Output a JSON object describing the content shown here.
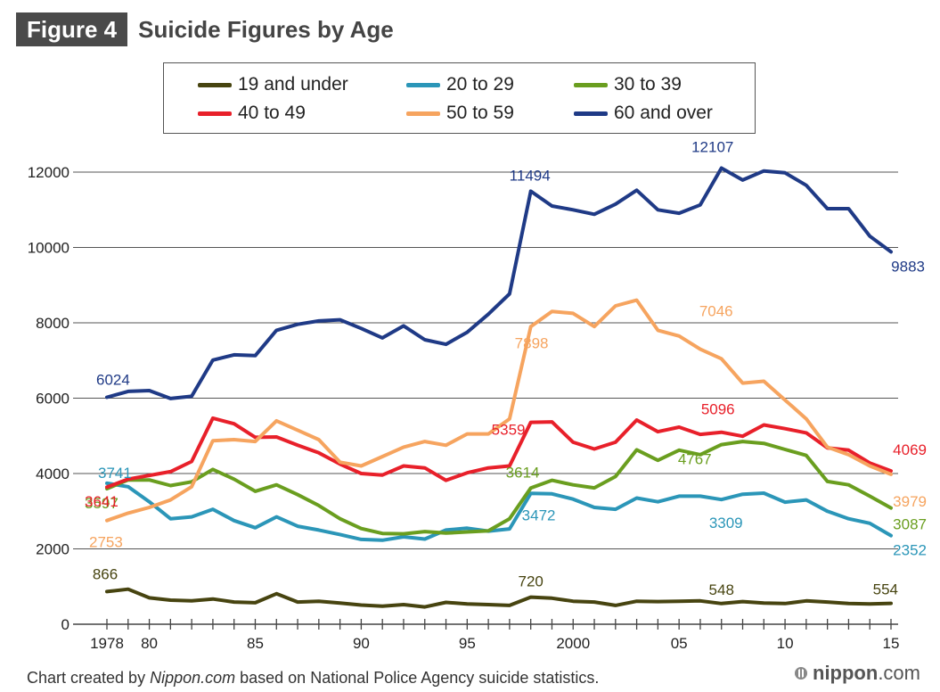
{
  "header": {
    "figure_tag": "Figure 4",
    "title": "Suicide Figures by Age"
  },
  "footer": {
    "note_prefix": "Chart created by ",
    "note_source": "Nippon.com",
    "note_suffix": " based on National Police Agency suicide statistics."
  },
  "brand": {
    "name_bold": "nippon",
    "name_rest": ".com"
  },
  "chart_data": {
    "type": "line",
    "title": "Suicide Figures by Age",
    "xlabel": "",
    "ylabel": "",
    "x": [
      1978,
      1979,
      1980,
      1981,
      1982,
      1983,
      1984,
      1985,
      1986,
      1987,
      1988,
      1989,
      1990,
      1991,
      1992,
      1993,
      1994,
      1995,
      1996,
      1997,
      1998,
      1999,
      2000,
      2001,
      2002,
      2003,
      2004,
      2005,
      2006,
      2007,
      2008,
      2009,
      2010,
      2011,
      2012,
      2013,
      2014,
      2015
    ],
    "x_tick_values": [
      1978,
      1980,
      1985,
      1990,
      1995,
      2000,
      2005,
      2010,
      2015
    ],
    "x_tick_labels": [
      "1978",
      "80",
      "85",
      "90",
      "95",
      "2000",
      "05",
      "10",
      "15"
    ],
    "ylim": [
      0,
      12000
    ],
    "y_ticks": [
      0,
      2000,
      4000,
      6000,
      8000,
      10000,
      12000
    ],
    "y_tick_labels": [
      "0",
      "2000",
      "4000",
      "6000",
      "8000",
      "10000",
      "12000"
    ],
    "grid": true,
    "legend_position": "top",
    "series": [
      {
        "name": "19 and under",
        "color": "#474410",
        "values": [
          866,
          930,
          700,
          640,
          620,
          670,
          590,
          570,
          810,
          590,
          610,
          560,
          510,
          480,
          520,
          460,
          580,
          540,
          520,
          500,
          720,
          690,
          610,
          590,
          500,
          610,
          600,
          610,
          620,
          548,
          600,
          560,
          550,
          620,
          590,
          550,
          540,
          554
        ]
      },
      {
        "name": "20 to 29",
        "color": "#2b96b8",
        "values": [
          3741,
          3650,
          3250,
          2800,
          2850,
          3050,
          2750,
          2560,
          2850,
          2600,
          2500,
          2380,
          2250,
          2230,
          2320,
          2260,
          2500,
          2550,
          2470,
          2530,
          3472,
          3460,
          3320,
          3100,
          3050,
          3350,
          3250,
          3400,
          3400,
          3309,
          3450,
          3480,
          3240,
          3300,
          3000,
          2800,
          2680,
          2352
        ]
      },
      {
        "name": "30 to 39",
        "color": "#6a9e1f",
        "values": [
          3597,
          3830,
          3830,
          3680,
          3780,
          4110,
          3850,
          3530,
          3700,
          3440,
          3150,
          2800,
          2540,
          2410,
          2400,
          2460,
          2420,
          2450,
          2480,
          2800,
          3614,
          3820,
          3700,
          3620,
          3920,
          4630,
          4350,
          4620,
          4500,
          4767,
          4850,
          4800,
          4640,
          4480,
          3790,
          3700,
          3400,
          3087
        ]
      },
      {
        "name": "40 to 49",
        "color": "#e8202a",
        "values": [
          3641,
          3850,
          3950,
          4050,
          4320,
          5470,
          5320,
          4960,
          4970,
          4750,
          4550,
          4250,
          4000,
          3960,
          4200,
          4150,
          3820,
          4020,
          4150,
          4200,
          5359,
          5370,
          4830,
          4650,
          4830,
          5420,
          5110,
          5230,
          5040,
          5096,
          4990,
          5290,
          5190,
          5080,
          4680,
          4620,
          4280,
          4069
        ]
      },
      {
        "name": "50 to 59",
        "color": "#f6a45f",
        "values": [
          2753,
          2950,
          3100,
          3300,
          3650,
          4870,
          4900,
          4850,
          5400,
          5150,
          4900,
          4300,
          4200,
          4450,
          4700,
          4850,
          4750,
          5050,
          5050,
          5450,
          7898,
          8300,
          8250,
          7900,
          8450,
          8600,
          7800,
          7650,
          7300,
          7046,
          6400,
          6450,
          5950,
          5450,
          4700,
          4500,
          4200,
          3979
        ]
      },
      {
        "name": "60 and over",
        "color": "#1f3a86",
        "values": [
          6024,
          6180,
          6200,
          5990,
          6050,
          7010,
          7150,
          7130,
          7800,
          7960,
          8050,
          8080,
          7850,
          7600,
          7920,
          7550,
          7430,
          7750,
          8230,
          8770,
          11494,
          11100,
          11000,
          10880,
          11150,
          11520,
          11000,
          10910,
          11130,
          12107,
          11790,
          12030,
          11980,
          11650,
          11030,
          11030,
          10300,
          9883
        ]
      }
    ],
    "annotations": [
      {
        "series": "19 and under",
        "x": 1978,
        "text": "866"
      },
      {
        "series": "19 and under",
        "x": 1998,
        "text": "720"
      },
      {
        "series": "19 and under",
        "x": 2007,
        "text": "548"
      },
      {
        "series": "19 and under",
        "x": 2015,
        "text": "554"
      },
      {
        "series": "20 to 29",
        "x": 1978,
        "text": "3741"
      },
      {
        "series": "20 to 29",
        "x": 1998,
        "text": "3472"
      },
      {
        "series": "20 to 29",
        "x": 2007,
        "text": "3309"
      },
      {
        "series": "20 to 29",
        "x": 2015,
        "text": "2352"
      },
      {
        "series": "30 to 39",
        "x": 1978,
        "text": "3597"
      },
      {
        "series": "30 to 39",
        "x": 1998,
        "text": "3614"
      },
      {
        "series": "30 to 39",
        "x": 2007,
        "text": "4767"
      },
      {
        "series": "30 to 39",
        "x": 2015,
        "text": "3087"
      },
      {
        "series": "40 to 49",
        "x": 1978,
        "text": "3641"
      },
      {
        "series": "40 to 49",
        "x": 1998,
        "text": "5359"
      },
      {
        "series": "40 to 49",
        "x": 2007,
        "text": "5096"
      },
      {
        "series": "40 to 49",
        "x": 2015,
        "text": "4069"
      },
      {
        "series": "50 to 59",
        "x": 1978,
        "text": "2753"
      },
      {
        "series": "50 to 59",
        "x": 1998,
        "text": "7898"
      },
      {
        "series": "50 to 59",
        "x": 2007,
        "text": "7046"
      },
      {
        "series": "50 to 59",
        "x": 2015,
        "text": "3979"
      },
      {
        "series": "60 and over",
        "x": 1978,
        "text": "6024"
      },
      {
        "series": "60 and over",
        "x": 1998,
        "text": "11494"
      },
      {
        "series": "60 and over",
        "x": 2007,
        "text": "12107"
      },
      {
        "series": "60 and over",
        "x": 2015,
        "text": "9883"
      }
    ]
  }
}
